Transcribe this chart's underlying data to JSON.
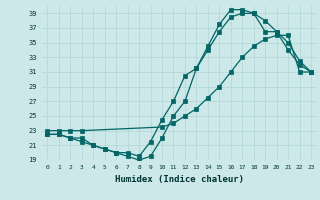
{
  "xlabel": "Humidex (Indice chaleur)",
  "bg_color": "#cce8e8",
  "grid_color": "#b0d4d4",
  "line_color": "#006666",
  "xlim": [
    -0.5,
    23.5
  ],
  "ylim": [
    19,
    40
  ],
  "yticks": [
    19,
    21,
    23,
    25,
    27,
    29,
    31,
    33,
    35,
    37,
    39
  ],
  "xticks": [
    0,
    1,
    2,
    3,
    4,
    5,
    6,
    7,
    8,
    9,
    10,
    11,
    12,
    13,
    14,
    15,
    16,
    17,
    18,
    19,
    20,
    21,
    22,
    23
  ],
  "curve1_x": [
    0,
    1,
    2,
    3,
    10,
    11,
    12,
    13,
    14,
    15,
    16,
    17,
    18,
    19,
    20,
    21,
    22,
    23
  ],
  "curve1_y": [
    23,
    23,
    23,
    23,
    23.5,
    24.0,
    25.0,
    26.0,
    27.5,
    29.0,
    31.0,
    33.0,
    34.5,
    35.5,
    36.0,
    36.0,
    31.0,
    31.0
  ],
  "curve2_x": [
    0,
    1,
    2,
    3,
    4,
    5,
    6,
    7,
    8,
    9,
    10,
    11,
    12,
    13,
    14,
    15,
    16,
    17,
    18,
    19,
    20,
    21,
    22,
    23
  ],
  "curve2_y": [
    22.5,
    22.5,
    22.0,
    21.5,
    21.0,
    20.5,
    20.0,
    19.5,
    19.0,
    19.5,
    22.0,
    25.0,
    27.0,
    31.5,
    34.5,
    37.5,
    39.5,
    39.5,
    39.0,
    38.0,
    36.5,
    34.0,
    32.0,
    31.0
  ],
  "curve3_x": [
    0,
    1,
    2,
    3,
    4,
    5,
    6,
    7,
    8,
    9,
    10,
    11,
    12,
    13,
    14,
    15,
    16,
    17,
    18,
    19,
    20,
    21,
    22,
    23
  ],
  "curve3_y": [
    22.5,
    22.5,
    22.0,
    22.0,
    21.0,
    20.5,
    20.0,
    20.0,
    19.5,
    21.5,
    24.5,
    27.0,
    30.5,
    31.5,
    34.0,
    36.5,
    38.5,
    39.0,
    39.0,
    36.5,
    36.5,
    35.0,
    32.5,
    31.0
  ]
}
